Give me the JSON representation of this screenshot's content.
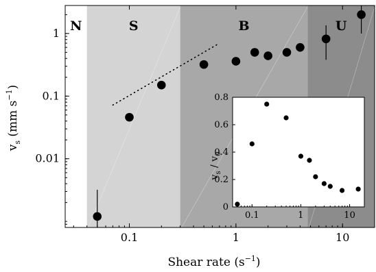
{
  "chart_data": [
    {
      "type": "scatter",
      "xscale": "log",
      "yscale": "log",
      "xlim": [
        0.025,
        20
      ],
      "ylim": [
        0.0008,
        2.8
      ],
      "xlabel": {
        "base": "Shear rate (s",
        "sup": "−1",
        "tail": ")"
      },
      "ylabel": {
        "v": "v",
        "sub": "s",
        "units": " (mm s",
        "sup": "−1",
        "tail": ")"
      },
      "xticks": [
        {
          "value": 0.1,
          "label": "0.1"
        },
        {
          "value": 1,
          "label": "1"
        },
        {
          "value": 10,
          "label": "10"
        }
      ],
      "yticks": [
        {
          "value": 0.01,
          "label": "0.01"
        },
        {
          "value": 0.1,
          "label": "0.1"
        },
        {
          "value": 1,
          "label": "1"
        }
      ],
      "regions": [
        {
          "label": "N",
          "x0": 0.025,
          "x1": 0.04,
          "color": "#ffffff"
        },
        {
          "label": "S",
          "x0": 0.04,
          "x1": 0.3,
          "color": "#d4d4d4"
        },
        {
          "label": "B",
          "x0": 0.3,
          "x1": 4.7,
          "color": "#a8a8a8"
        },
        {
          "label": "U",
          "x0": 4.7,
          "x1": 20,
          "color": "#8c8c8c"
        }
      ],
      "points": [
        {
          "x": 0.05,
          "y": 0.0012,
          "yerr_lo": 0.0008,
          "yerr_hi": 0.0032
        },
        {
          "x": 0.1,
          "y": 0.046
        },
        {
          "x": 0.2,
          "y": 0.15
        },
        {
          "x": 0.5,
          "y": 0.32
        },
        {
          "x": 1.0,
          "y": 0.36
        },
        {
          "x": 1.5,
          "y": 0.5
        },
        {
          "x": 2.0,
          "y": 0.44
        },
        {
          "x": 3.0,
          "y": 0.5
        },
        {
          "x": 4.0,
          "y": 0.6
        },
        {
          "x": 7.0,
          "y": 0.82,
          "yerr_lo": 0.38,
          "yerr_hi": 1.35
        },
        {
          "x": 15.0,
          "y": 2.0,
          "yerr_lo": 1.0,
          "yerr_hi": 2.8
        }
      ],
      "fit_line": {
        "x0": 0.07,
        "y0": 0.072,
        "x1": 0.7,
        "y1": 0.7
      }
    },
    {
      "type": "scatter",
      "xscale": "log",
      "yscale": "linear",
      "xlim": [
        0.04,
        20
      ],
      "ylim": [
        0,
        0.8
      ],
      "ylabel": {
        "v": "v",
        "sub1": "s",
        "mid": " / v",
        "sub2": "0"
      },
      "xticks": [
        {
          "value": 0.1,
          "label": "0.1"
        },
        {
          "value": 1,
          "label": "1"
        },
        {
          "value": 10,
          "label": "10"
        }
      ],
      "yticks": [
        {
          "value": 0,
          "label": "0"
        },
        {
          "value": 0.2,
          "label": "0.2"
        },
        {
          "value": 0.4,
          "label": "0.4"
        },
        {
          "value": 0.6,
          "label": "0.6"
        },
        {
          "value": 0.8,
          "label": "0.8"
        }
      ],
      "points": [
        {
          "x": 0.05,
          "y": 0.02
        },
        {
          "x": 0.1,
          "y": 0.46
        },
        {
          "x": 0.2,
          "y": 0.75
        },
        {
          "x": 0.5,
          "y": 0.65
        },
        {
          "x": 1.0,
          "y": 0.37
        },
        {
          "x": 1.5,
          "y": 0.34
        },
        {
          "x": 2.0,
          "y": 0.22
        },
        {
          "x": 3.0,
          "y": 0.17
        },
        {
          "x": 4.0,
          "y": 0.15
        },
        {
          "x": 7.0,
          "y": 0.12
        },
        {
          "x": 15.0,
          "y": 0.13
        }
      ]
    }
  ]
}
